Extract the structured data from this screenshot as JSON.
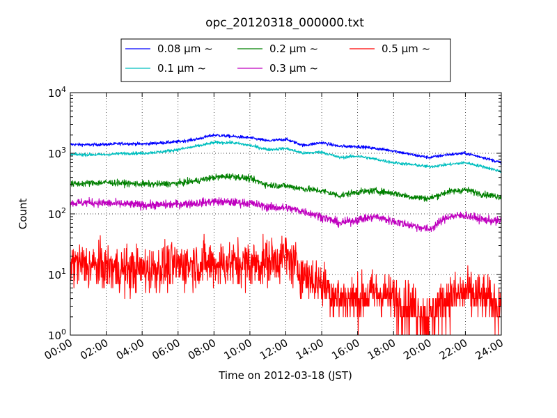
{
  "chart_data": {
    "type": "line",
    "title": "opc_20120318_000000.txt",
    "xlabel": "Time on 2012-03-18 (JST)",
    "ylabel": "Count",
    "y_scale": "log",
    "ylim": [
      1,
      10000
    ],
    "xlim": [
      "00:00",
      "24:00"
    ],
    "x_ticks": [
      "00:00",
      "02:00",
      "04:00",
      "06:00",
      "08:00",
      "10:00",
      "12:00",
      "14:00",
      "16:00",
      "18:00",
      "20:00",
      "22:00",
      "24:00"
    ],
    "y_ticks": [
      {
        "base": "10",
        "exp": "0"
      },
      {
        "base": "10",
        "exp": "1"
      },
      {
        "base": "10",
        "exp": "2"
      },
      {
        "base": "10",
        "exp": "3"
      },
      {
        "base": "10",
        "exp": "4"
      }
    ],
    "grid": true,
    "legend_position": "top-center",
    "x": [
      "00:00",
      "01:00",
      "02:00",
      "03:00",
      "04:00",
      "05:00",
      "06:00",
      "07:00",
      "08:00",
      "09:00",
      "10:00",
      "11:00",
      "12:00",
      "13:00",
      "14:00",
      "15:00",
      "16:00",
      "17:00",
      "18:00",
      "19:00",
      "20:00",
      "21:00",
      "22:00",
      "23:00",
      "24:00"
    ],
    "series": [
      {
        "name": "0.08 μm ~",
        "color": "#0000ff",
        "noise": 0.03,
        "values": [
          1400,
          1380,
          1400,
          1450,
          1420,
          1480,
          1550,
          1700,
          2000,
          1900,
          1800,
          1600,
          1700,
          1350,
          1500,
          1300,
          1300,
          1200,
          1100,
          950,
          850,
          950,
          1000,
          850,
          700
        ]
      },
      {
        "name": "0.1 μm ~",
        "color": "#00bfbf",
        "noise": 0.03,
        "values": [
          950,
          950,
          950,
          1000,
          1000,
          1050,
          1150,
          1300,
          1500,
          1500,
          1350,
          1150,
          1200,
          1000,
          1050,
          850,
          900,
          800,
          700,
          650,
          600,
          650,
          700,
          600,
          500
        ]
      },
      {
        "name": "0.2 μm ~",
        "color": "#008000",
        "noise": 0.06,
        "values": [
          310,
          320,
          330,
          320,
          310,
          310,
          320,
          350,
          400,
          420,
          380,
          300,
          290,
          260,
          240,
          200,
          230,
          240,
          220,
          190,
          180,
          230,
          250,
          210,
          190
        ]
      },
      {
        "name": "0.3 μm ~",
        "color": "#bf00bf",
        "noise": 0.08,
        "values": [
          150,
          155,
          150,
          145,
          140,
          140,
          145,
          150,
          160,
          155,
          150,
          130,
          125,
          110,
          90,
          70,
          80,
          90,
          75,
          65,
          55,
          90,
          95,
          80,
          75
        ]
      },
      {
        "name": "0.5 μm ~",
        "color": "#ff0000",
        "noise": 0.45,
        "values": [
          15,
          14,
          13,
          12,
          12,
          13,
          14,
          15,
          15,
          15,
          15,
          16,
          20,
          10,
          7,
          4,
          4,
          5,
          4,
          3,
          2,
          4,
          5,
          4,
          3
        ]
      }
    ]
  }
}
